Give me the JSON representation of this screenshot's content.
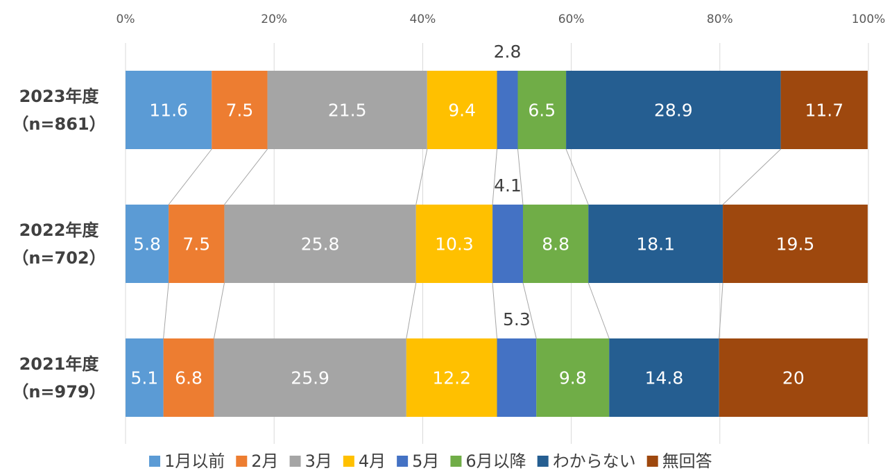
{
  "chart_data": {
    "type": "stacked-barh-100",
    "categories": [
      [
        "2023年度",
        "（n=861）"
      ],
      [
        "2022年度",
        "（n=702）"
      ],
      [
        "2021年度",
        "（n=979）"
      ]
    ],
    "series": [
      {
        "name": "1月以前",
        "color": "#5b9bd5",
        "values": [
          11.6,
          5.8,
          5.1
        ]
      },
      {
        "name": "2月",
        "color": "#ed7d31",
        "values": [
          7.5,
          7.5,
          6.8
        ]
      },
      {
        "name": "3月",
        "color": "#a5a5a5",
        "values": [
          21.5,
          25.8,
          25.9
        ]
      },
      {
        "name": "4月",
        "color": "#ffc000",
        "values": [
          9.4,
          10.3,
          12.2
        ]
      },
      {
        "name": "5月",
        "color": "#4472c4",
        "values": [
          2.8,
          4.1,
          5.3
        ],
        "label_position": "above"
      },
      {
        "name": "6月以降",
        "color": "#70ad47",
        "values": [
          6.5,
          8.8,
          9.8
        ]
      },
      {
        "name": "わからない",
        "color": "#255e91",
        "values": [
          28.9,
          18.1,
          14.8
        ]
      },
      {
        "name": "無回答",
        "color": "#9e480e",
        "values": [
          11.7,
          19.5,
          20
        ]
      }
    ],
    "xlim": [
      0,
      100
    ],
    "xticks": [
      {
        "value": 0,
        "label": "0%"
      },
      {
        "value": 20,
        "label": "20%"
      },
      {
        "value": 40,
        "label": "40%"
      },
      {
        "value": 60,
        "label": "60%"
      },
      {
        "value": 80,
        "label": "80%"
      },
      {
        "value": 100,
        "label": "100%"
      }
    ],
    "grid": true,
    "connectors": true,
    "legend": "bottom"
  }
}
